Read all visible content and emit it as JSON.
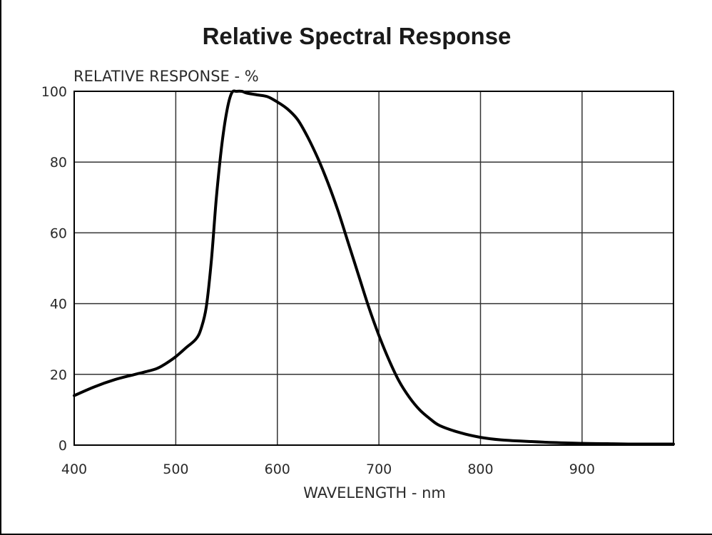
{
  "chart_data": {
    "type": "line",
    "title": "Relative Spectral Response",
    "ylabel": "RELATIVE RESPONSE - %",
    "xlabel": "WAVELENGTH - nm",
    "xlim": [
      400,
      990
    ],
    "ylim": [
      0,
      100
    ],
    "x_ticks": [
      "400",
      "500",
      "600",
      "700",
      "800",
      "900"
    ],
    "y_ticks": [
      "0",
      "20",
      "40",
      "60",
      "80",
      "100"
    ],
    "grid": true,
    "series": [
      {
        "x": [
          400,
          420,
          440,
          460,
          480,
          490,
          500,
          510,
          520,
          525,
          530,
          535,
          540,
          545,
          550,
          555,
          560,
          565,
          570,
          580,
          590,
          600,
          610,
          620,
          630,
          640,
          650,
          660,
          670,
          680,
          690,
          700,
          710,
          720,
          730,
          740,
          750,
          760,
          780,
          800,
          820,
          850,
          875,
          900,
          925,
          950,
          990
        ],
        "y": [
          14,
          16.5,
          18.5,
          20,
          21.5,
          23,
          25,
          27.5,
          30,
          33,
          39,
          52,
          70,
          84,
          94,
          99.5,
          100,
          100,
          99.5,
          99,
          98.5,
          97,
          95,
          92,
          87,
          81,
          74,
          66,
          57,
          48,
          39,
          31,
          24,
          18,
          13.5,
          10,
          7.5,
          5.5,
          3.5,
          2.2,
          1.5,
          1,
          0.7,
          0.5,
          0.4,
          0.3,
          0.3
        ]
      }
    ]
  }
}
